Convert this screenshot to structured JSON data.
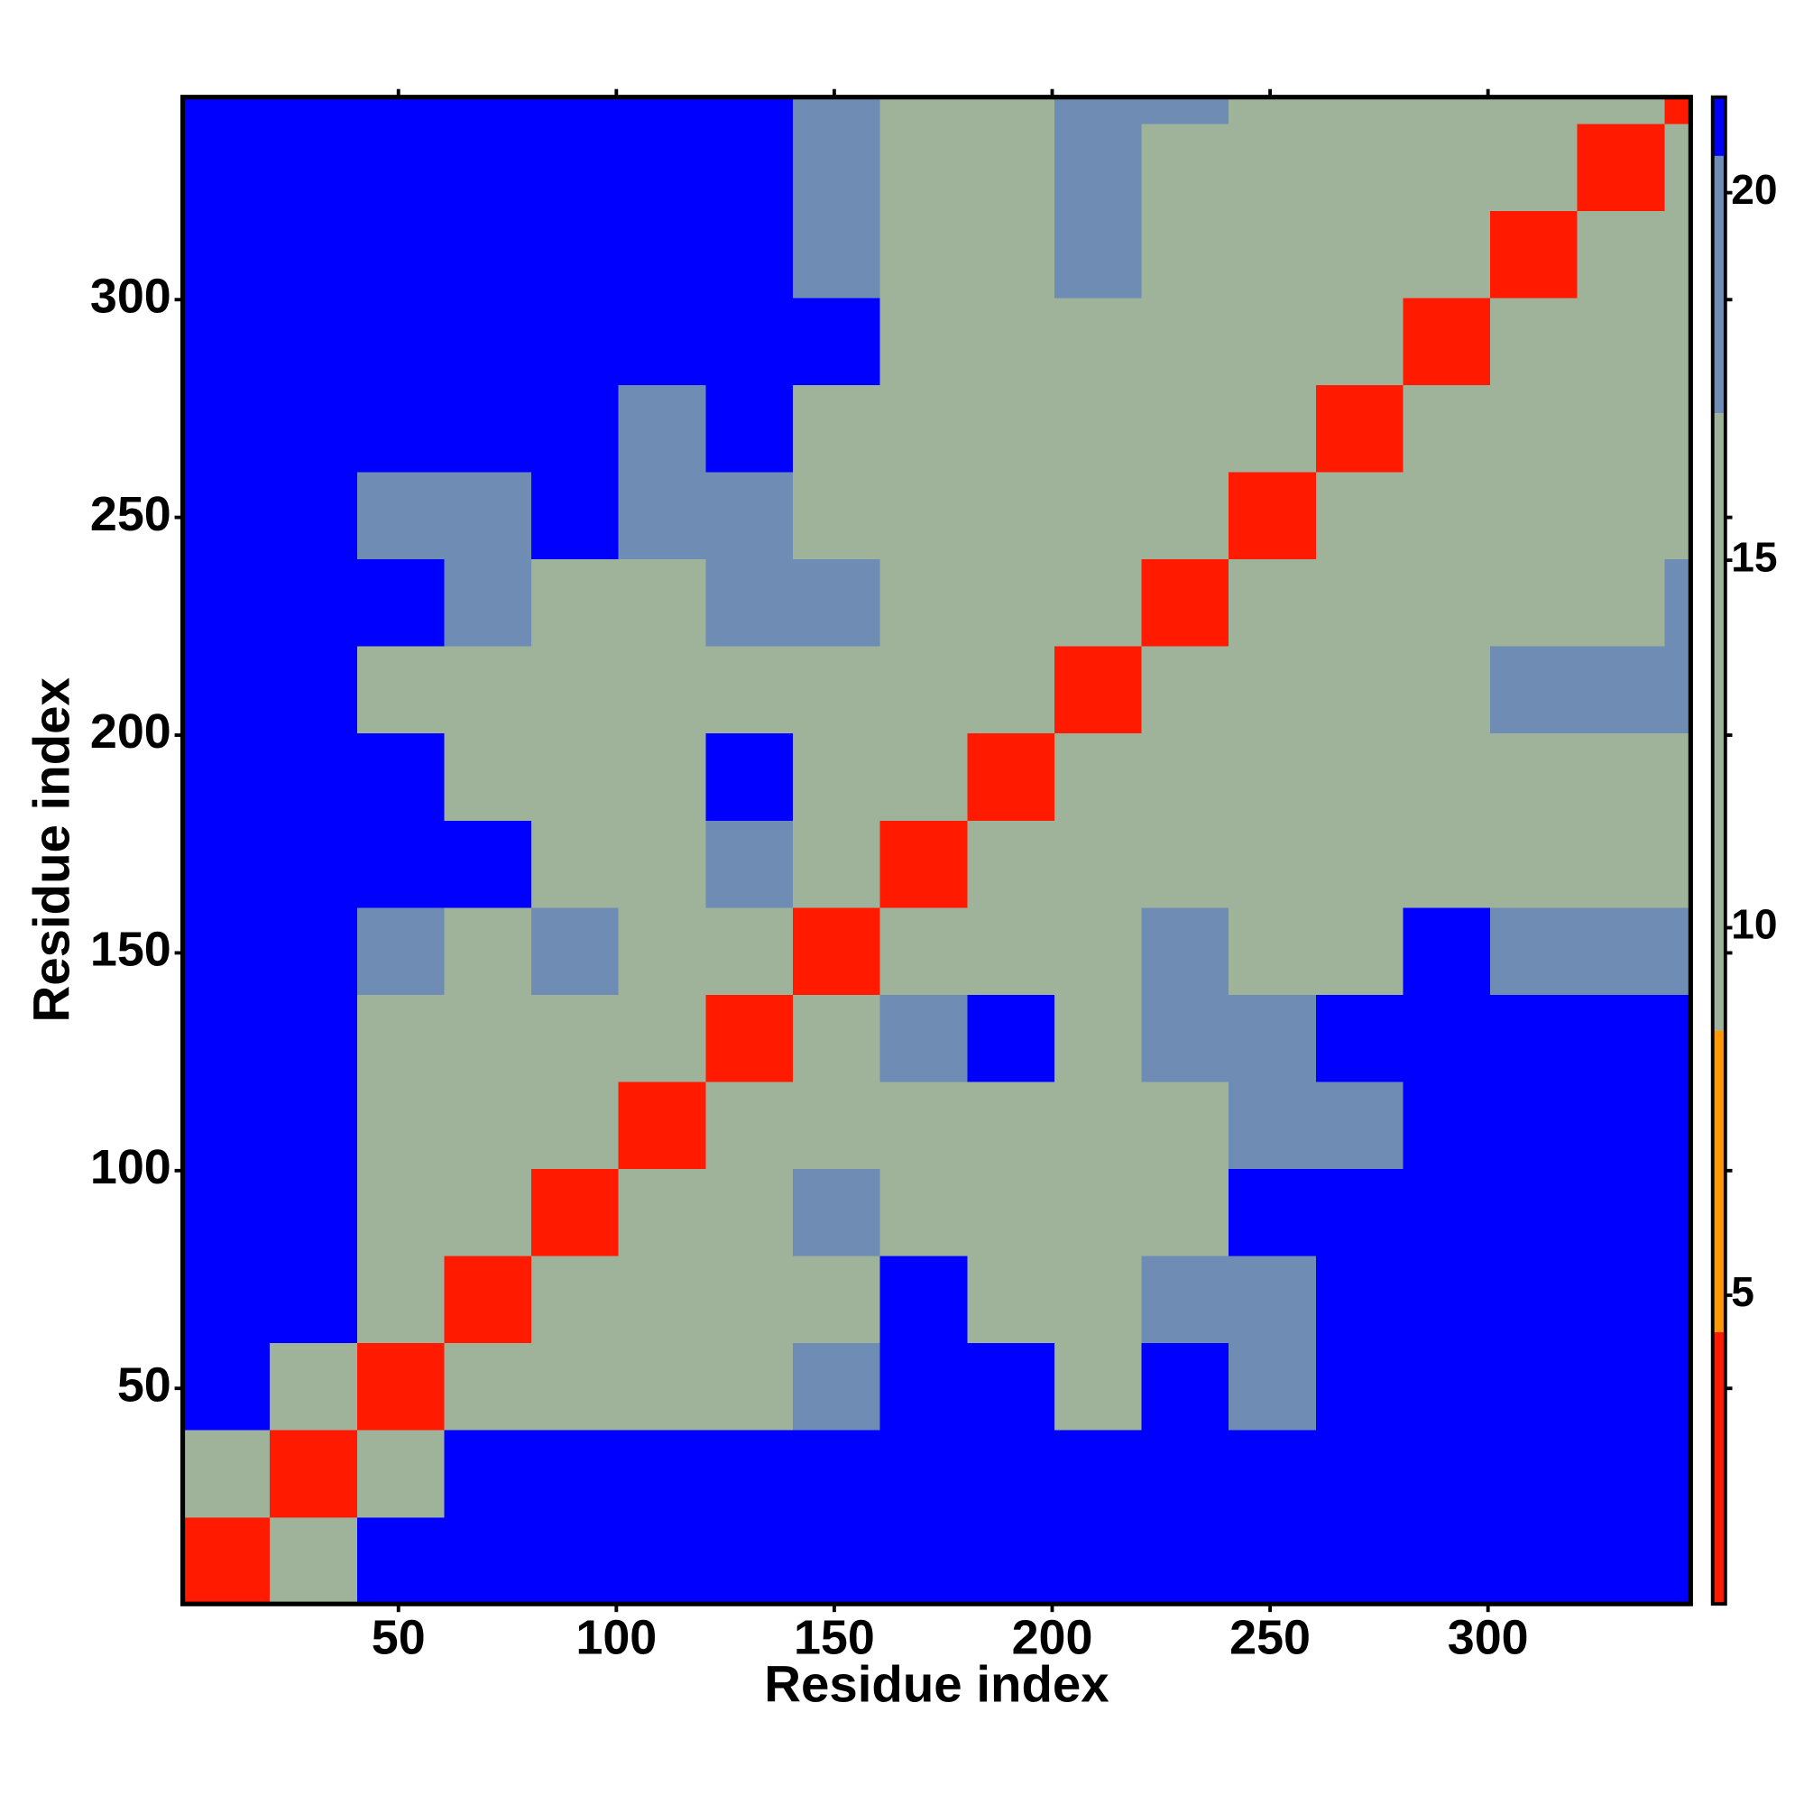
{
  "chart_data": {
    "type": "heatmap",
    "x_label": "Residue index",
    "y_label": "Residue index",
    "x_bins": [
      0.5,
      20.5,
      40.5,
      60.5,
      80.5,
      100.5,
      120.5,
      140.5,
      160.5,
      180.5,
      200.5,
      220.5,
      240.5,
      260.5,
      280.5,
      300.5,
      320.5,
      340.5,
      346.5
    ],
    "y_bins": [
      0.5,
      20.5,
      40.5,
      60.5,
      80.5,
      100.5,
      120.5,
      140.5,
      160.5,
      180.5,
      200.5,
      220.5,
      240.5,
      260.5,
      280.5,
      300.5,
      320.5,
      340.5,
      346.5
    ],
    "values": [
      [
        4,
        16,
        21,
        21,
        21,
        21,
        21,
        21,
        21,
        21,
        21,
        21,
        21,
        21,
        21,
        21,
        21,
        21
      ],
      [
        16,
        4,
        15,
        21,
        21,
        21,
        21,
        21,
        21,
        21,
        21,
        21,
        21,
        21,
        21,
        21,
        21,
        21
      ],
      [
        21,
        15,
        4,
        10,
        13,
        14,
        12,
        18,
        21,
        21,
        16,
        21,
        19,
        21,
        21,
        21,
        21,
        21
      ],
      [
        21,
        21,
        10,
        4,
        10,
        13,
        11,
        17,
        21,
        17,
        15,
        18,
        19,
        21,
        21,
        21,
        21,
        21
      ],
      [
        21,
        21,
        13,
        10,
        4,
        11,
        12,
        18,
        15,
        13,
        13,
        17,
        21,
        21,
        21,
        21,
        21,
        21
      ],
      [
        21,
        21,
        14,
        13,
        11,
        4,
        9,
        15,
        16,
        13,
        13,
        16,
        18,
        18,
        21,
        21,
        21,
        21
      ],
      [
        21,
        21,
        12,
        11,
        12,
        9,
        4,
        11,
        19,
        21,
        14,
        18,
        19,
        21,
        21,
        21,
        21,
        21
      ],
      [
        21,
        21,
        18,
        17,
        18,
        15,
        11,
        4,
        10,
        15,
        14,
        19,
        17,
        15,
        21,
        19,
        19,
        19
      ],
      [
        21,
        21,
        21,
        21,
        15,
        16,
        19,
        10,
        4,
        11,
        12,
        14,
        15,
        13,
        16,
        15,
        14,
        15
      ],
      [
        21,
        21,
        21,
        17,
        13,
        13,
        21,
        15,
        11,
        4,
        9,
        12,
        13,
        13,
        15,
        15,
        14,
        15
      ],
      [
        21,
        21,
        16,
        15,
        13,
        13,
        14,
        14,
        12,
        9,
        4,
        10,
        13,
        14,
        17,
        19,
        18,
        18
      ],
      [
        21,
        21,
        21,
        18,
        17,
        16,
        18,
        19,
        14,
        12,
        10,
        4,
        11,
        13,
        14,
        17,
        17,
        18
      ],
      [
        21,
        21,
        19,
        19,
        21,
        18,
        19,
        17,
        15,
        13,
        13,
        11,
        4,
        10,
        12,
        14,
        15,
        17
      ],
      [
        21,
        21,
        21,
        21,
        21,
        18,
        21,
        15,
        13,
        13,
        14,
        13,
        10,
        4,
        10,
        12,
        13,
        15
      ],
      [
        21,
        21,
        21,
        21,
        21,
        21,
        21,
        21,
        16,
        15,
        17,
        14,
        12,
        10,
        4,
        10,
        12,
        14
      ],
      [
        21,
        21,
        21,
        21,
        21,
        21,
        21,
        19,
        15,
        15,
        19,
        17,
        14,
        12,
        10,
        4,
        10,
        12
      ],
      [
        21,
        21,
        21,
        21,
        21,
        21,
        21,
        19,
        14,
        14,
        18,
        17,
        15,
        13,
        12,
        10,
        4,
        10
      ],
      [
        21,
        21,
        21,
        21,
        21,
        21,
        21,
        19,
        15,
        15,
        18,
        18,
        17,
        15,
        14,
        12,
        10,
        4
      ]
    ],
    "xlim": [
      0.5,
      346.5
    ],
    "ylim": [
      0.5,
      346.5
    ],
    "xticks": [
      50,
      100,
      150,
      200,
      250,
      300
    ],
    "yticks": [
      50,
      100,
      150,
      200,
      250,
      300
    ],
    "clim": [
      0.8,
      21.3
    ],
    "cticks": [
      5,
      10,
      15,
      20
    ],
    "colorscale": [
      {
        "max": 4.5,
        "color": "#ff1a00"
      },
      {
        "max": 8.6,
        "color": "#ff9900"
      },
      {
        "max": 17,
        "color": "#9fb29a"
      },
      {
        "max": 20.5,
        "color": "#6e8cb4"
      },
      {
        "max": 21.3,
        "color": "#0000ff"
      }
    ]
  }
}
